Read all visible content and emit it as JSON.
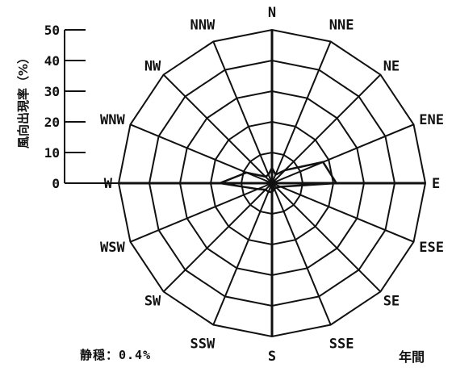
{
  "chart_data": {
    "type": "polar-line",
    "directions": [
      "N",
      "NNE",
      "NE",
      "ENE",
      "E",
      "ESE",
      "SE",
      "SSE",
      "S",
      "SSW",
      "SW",
      "WSW",
      "W",
      "WNW",
      "NW",
      "NNW"
    ],
    "series": [
      {
        "values": [
          5,
          3,
          6,
          18,
          21,
          3,
          2,
          2,
          3,
          3,
          3,
          5,
          17,
          9,
          3,
          3
        ]
      }
    ],
    "rlim": [
      0,
      50
    ],
    "rticks": [
      0,
      10,
      20,
      30,
      40,
      50
    ],
    "ylabel": "風向出現率（%）",
    "grid": true,
    "calm_text": "静穏：0.4%",
    "period_label": "年間",
    "line_color": "#111111",
    "grid_color": "#111111"
  }
}
